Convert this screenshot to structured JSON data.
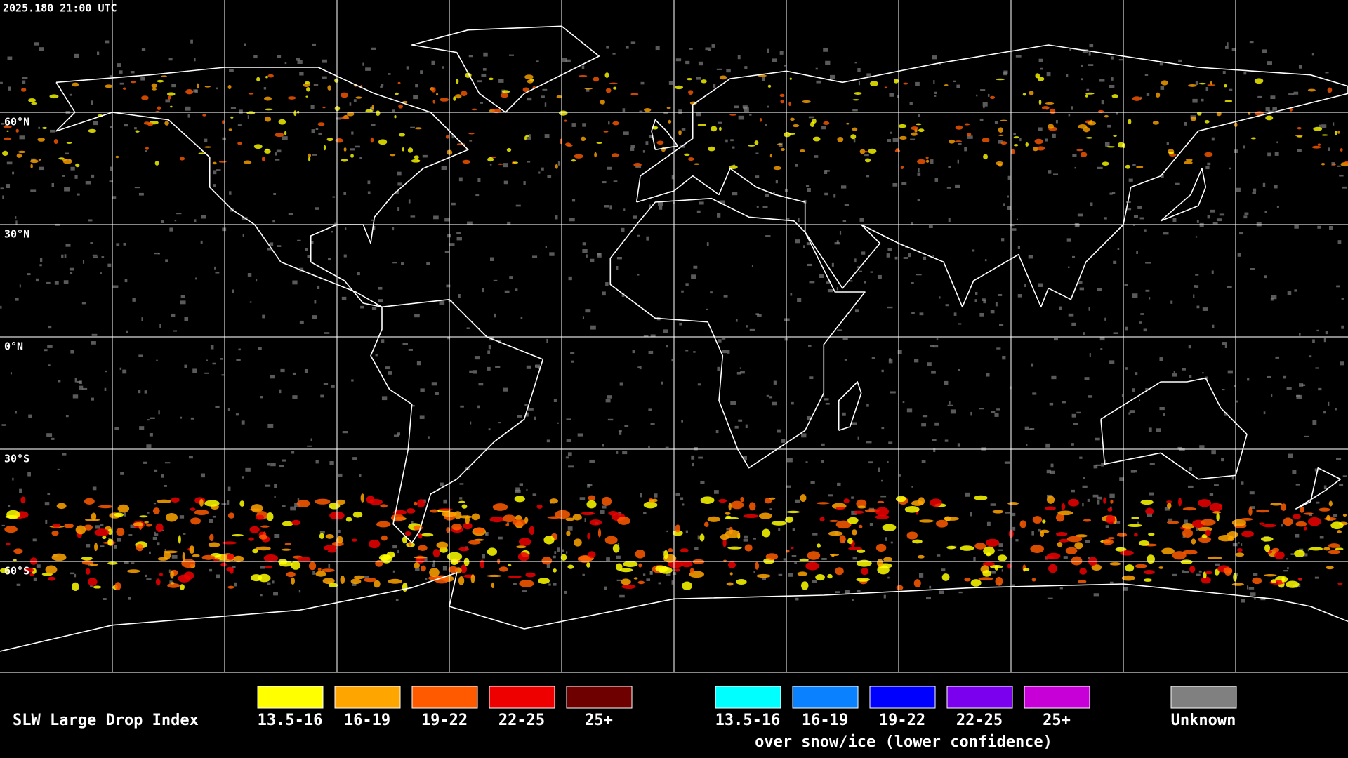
{
  "timestamp": "2025.180 21:00 UTC",
  "latitude_labels": [
    "60°N",
    "30°N",
    "0°N",
    "30°S",
    "60°S"
  ],
  "legend": {
    "title": "SLW Large Drop Index",
    "items": [
      {
        "label": "13.5-16",
        "color": "#ffff00"
      },
      {
        "label": "16-19",
        "color": "#ffa500"
      },
      {
        "label": "19-22",
        "color": "#ff5a00"
      },
      {
        "label": "22-25",
        "color": "#ee0000"
      },
      {
        "label": "25+",
        "color": "#6e0000"
      }
    ],
    "snow_items": [
      {
        "label": "13.5-16",
        "color": "#00ffff"
      },
      {
        "label": "16-19",
        "color": "#0a82ff"
      },
      {
        "label": "19-22",
        "color": "#0000ff"
      },
      {
        "label": "22-25",
        "color": "#7a00ee"
      },
      {
        "label": "25+",
        "color": "#c800d8"
      }
    ],
    "snow_note": "over snow/ice (lower confidence)",
    "unknown": {
      "label": "Unknown",
      "color": "#808080"
    }
  }
}
